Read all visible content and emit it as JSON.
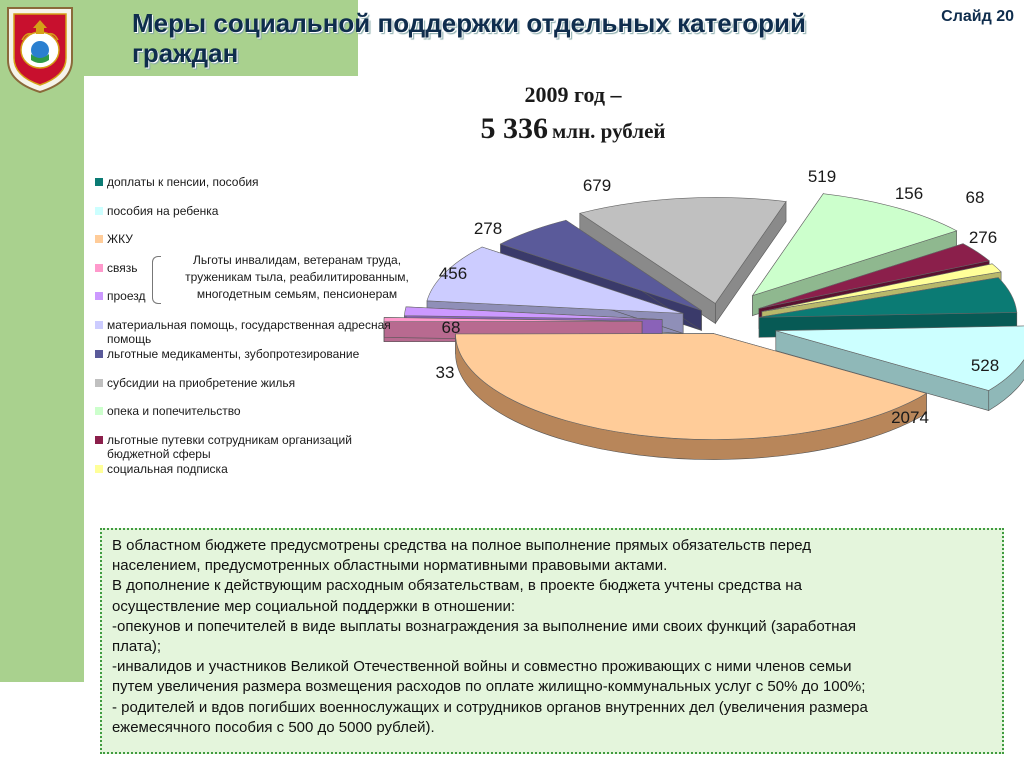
{
  "header": {
    "title": "Меры социальной поддержки отдельных категорий граждан",
    "slide": "Слайд 20",
    "emblem_icon": "coat-of-arms-icon"
  },
  "summary": {
    "year_line": "2009 год –",
    "total_value": "5 336",
    "total_unit": "млн. рублей"
  },
  "callout": {
    "text": "Льготы инвалидам, ветеранам труда, труженикам тыла, реабилитированным, многодетным семьям, пенсионерам"
  },
  "chart_data": {
    "type": "pie",
    "title": "",
    "legend_position": "left",
    "style": "3d-exploded",
    "categories": [
      "доплаты к пенсии, пособия",
      "пособия на ребенка",
      "ЖКУ",
      "связь",
      "проезд",
      "материальная помощь, государственная адресная помощь",
      "льготные медикаменты, зубопротезирование",
      "субсидии на приобретение жилья",
      "опека и попечительство",
      "льготные путевки сотрудникам организаций бюджетной сферы",
      "социальная подписка"
    ],
    "values": [
      276,
      528,
      2074,
      33,
      68,
      456,
      278,
      679,
      519,
      156,
      68
    ],
    "labels": [
      "276",
      "528",
      "2074",
      "33",
      "68",
      "456",
      "278",
      "679",
      "519",
      "156",
      "68"
    ],
    "colors": [
      "#0b7b74",
      "#ccffff",
      "#ffcc99",
      "#ff99cc",
      "#cc99ff",
      "#ccccff",
      "#5a5a9a",
      "#c0c0c0",
      "#ccffcc",
      "#8b1f4b",
      "#ffff99"
    ],
    "dark_colors": [
      "#075a55",
      "#8fb8b8",
      "#b8865a",
      "#b86a90",
      "#8a62b8",
      "#8f8fb8",
      "#3a3a6a",
      "#8a8a8a",
      "#8fb88f",
      "#5a1230",
      "#b8b86a"
    ]
  },
  "note": {
    "lines": [
      "В областном бюджете предусмотрены средства на полное выполнение прямых обязательств перед",
      "населением, предусмотренных областными нормативными правовыми актами.",
      "В дополнение к действующим расходным обязательствам, в проекте бюджета учтены средства на",
      "осуществление мер социальной поддержки в отношении:",
      "-опекунов и попечителей в виде выплаты вознаграждения за выполнение ими своих функций (заработная",
      "плата);",
      "-инвалидов и участников Великой Отечественной войны и совместно проживающих с ними членов семьи",
      "путем увеличения размера возмещения расходов по оплате жилищно-коммунальных услуг с 50% до 100%;",
      "- родителей и вдов погибших военнослужащих и сотрудников органов внутренних дел (увеличения размера",
      "ежемесячного пособия с 500 до 5000 рублей)."
    ]
  }
}
